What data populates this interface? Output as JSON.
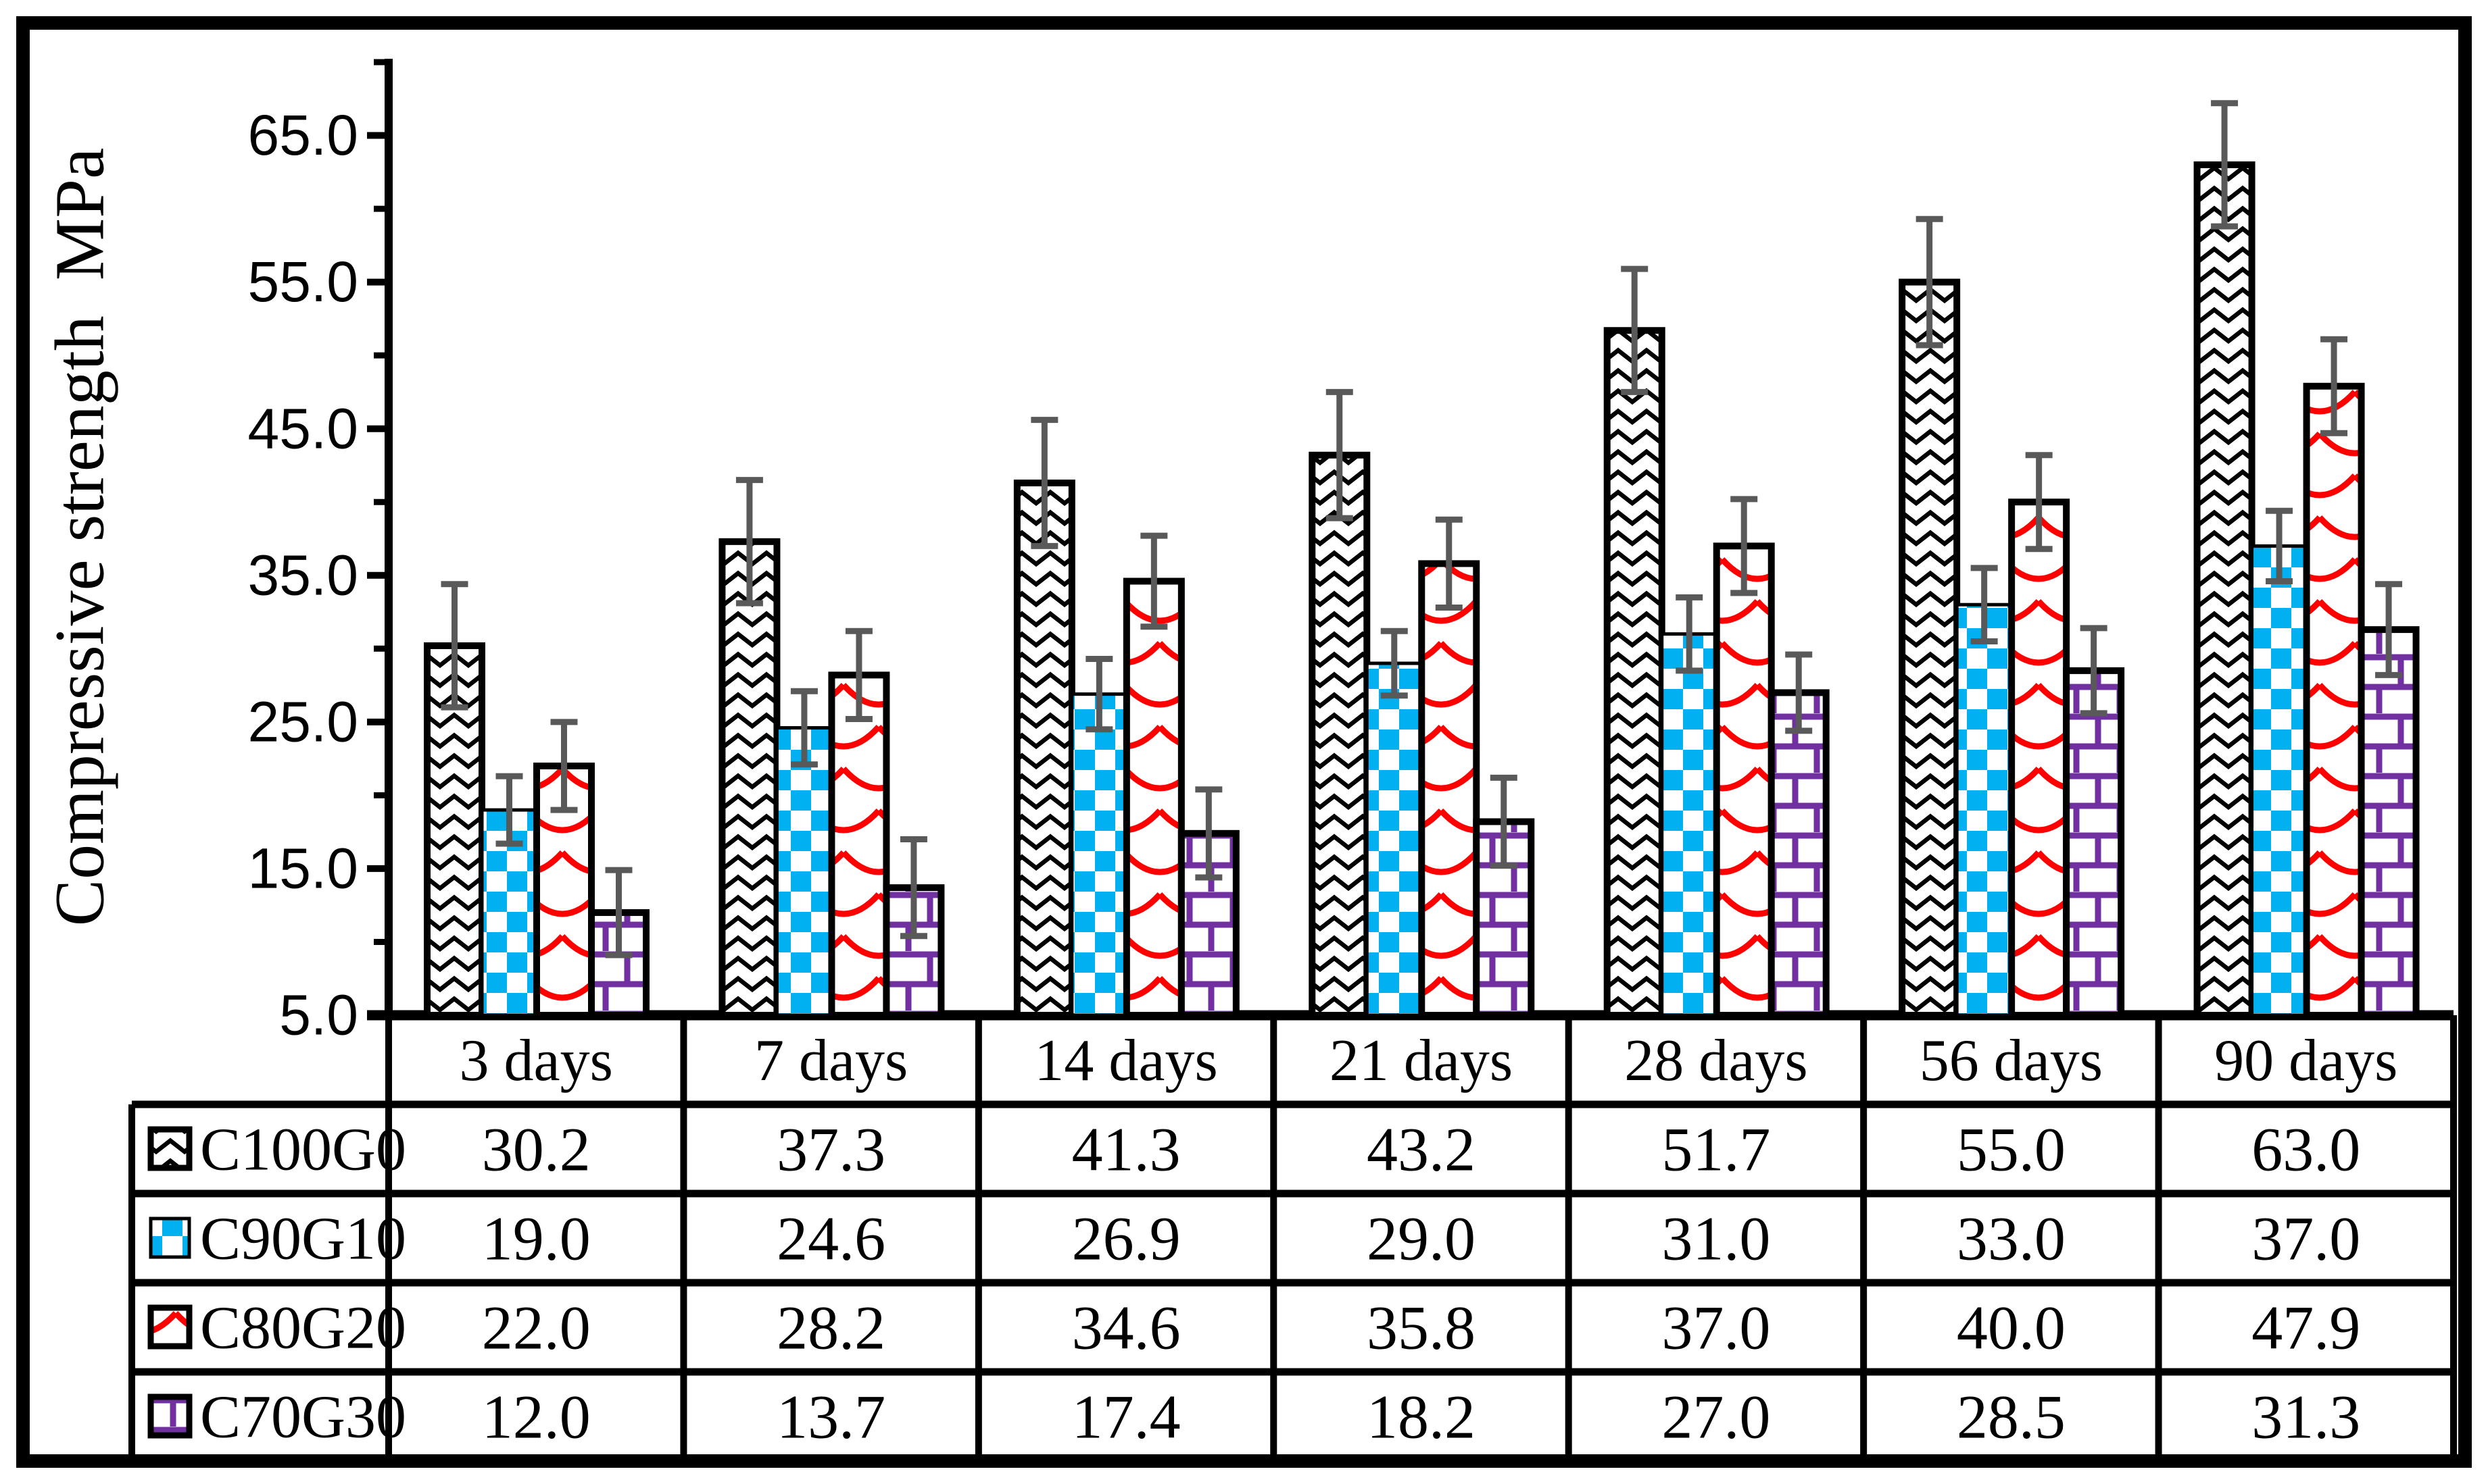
{
  "figure": {
    "ylabel": "Compressive strength  MPa"
  },
  "chart_data": {
    "type": "bar",
    "title": "",
    "xlabel": "",
    "ylabel": "Compressive strength  MPa",
    "ylim": [
      5,
      70
    ],
    "ytick_step": 5,
    "yticks_labeled": [
      "5.0",
      "15.0",
      "25.0",
      "35.0",
      "45.0",
      "55.0",
      "65.0"
    ],
    "grid": false,
    "legend_position": "table-left-column",
    "error_bar_color": "#595959",
    "categories": [
      "3 days",
      "7 days",
      "14 days",
      "21 days",
      "28 days",
      "56 days",
      "90 days"
    ],
    "series": [
      {
        "name": "C100G0",
        "pattern": "black-wave",
        "color": "#000000",
        "values": [
          30.2,
          37.3,
          41.3,
          43.2,
          51.7,
          55.0,
          63.0
        ],
        "errors": [
          4.2,
          4.2,
          4.3,
          4.3,
          4.2,
          4.3,
          4.2
        ]
      },
      {
        "name": "C90G10",
        "pattern": "blue-checker",
        "color": "#00B0F0",
        "values": [
          19.0,
          24.6,
          26.9,
          29.0,
          31.0,
          33.0,
          37.0
        ],
        "errors": [
          2.3,
          2.5,
          2.4,
          2.2,
          2.5,
          2.5,
          2.4
        ]
      },
      {
        "name": "C80G20",
        "pattern": "red-wave",
        "color": "#FF0000",
        "values": [
          22.0,
          28.2,
          34.6,
          35.8,
          37.0,
          40.0,
          47.9
        ],
        "errors": [
          3.0,
          3.0,
          3.1,
          3.0,
          3.2,
          3.2,
          3.2
        ]
      },
      {
        "name": "C70G30",
        "pattern": "purple-brick",
        "color": "#7030A0",
        "values": [
          12.0,
          13.7,
          17.4,
          18.2,
          27.0,
          28.5,
          31.3
        ],
        "errors": [
          2.9,
          3.3,
          3.0,
          3.0,
          2.6,
          2.9,
          3.1
        ]
      }
    ],
    "value_decimals": 1
  }
}
